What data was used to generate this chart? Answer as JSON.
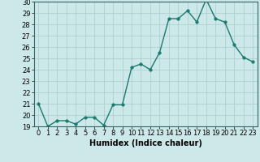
{
  "x": [
    0,
    1,
    2,
    3,
    4,
    5,
    6,
    7,
    8,
    9,
    10,
    11,
    12,
    13,
    14,
    15,
    16,
    17,
    18,
    19,
    20,
    21,
    22,
    23
  ],
  "y": [
    21,
    19,
    19.5,
    19.5,
    19.2,
    19.8,
    19.8,
    19.1,
    20.9,
    20.9,
    24.2,
    24.5,
    24.0,
    25.5,
    28.5,
    28.5,
    29.2,
    28.2,
    30.2,
    28.5,
    28.2,
    26.2,
    25.1,
    24.7
  ],
  "line_color": "#1a7a6e",
  "marker": "o",
  "markersize": 2.5,
  "linewidth": 1.0,
  "xlabel": "Humidex (Indice chaleur)",
  "ylim": [
    19,
    30
  ],
  "xlim": [
    -0.5,
    23.5
  ],
  "yticks": [
    19,
    20,
    21,
    22,
    23,
    24,
    25,
    26,
    27,
    28,
    29,
    30
  ],
  "xticks": [
    0,
    1,
    2,
    3,
    4,
    5,
    6,
    7,
    8,
    9,
    10,
    11,
    12,
    13,
    14,
    15,
    16,
    17,
    18,
    19,
    20,
    21,
    22,
    23
  ],
  "bg_color": "#cce8e8",
  "grid_color": "#b0d0d0",
  "axis_fontsize": 7,
  "tick_fontsize": 6
}
